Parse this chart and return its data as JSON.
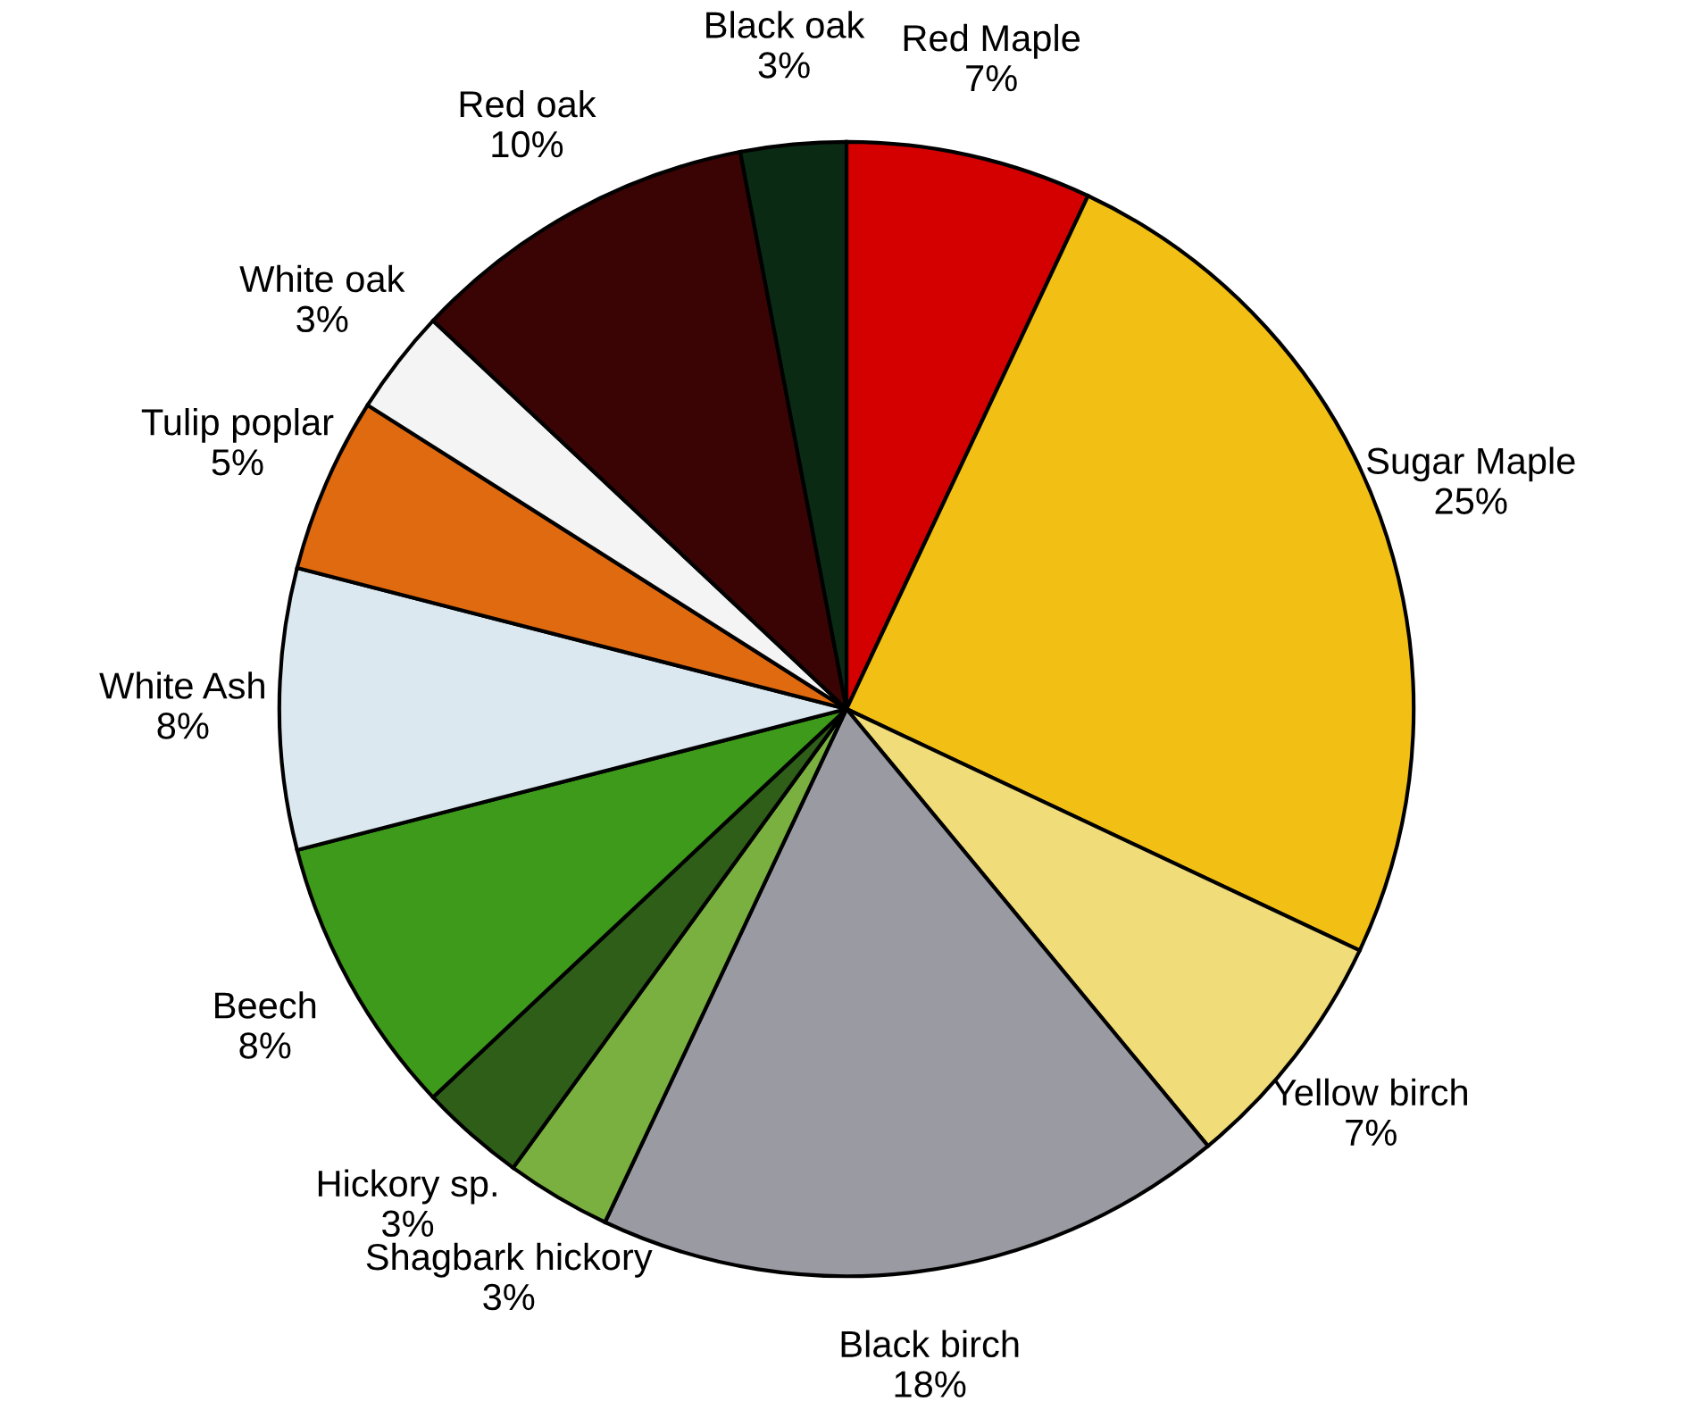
{
  "chart_data": {
    "type": "pie",
    "categories": [
      "Red Maple",
      "Sugar Maple",
      "Yellow birch",
      "Black birch",
      "Shagbark hickory",
      "Hickory sp.",
      "Beech",
      "White Ash",
      "Tulip poplar",
      "White oak",
      "Red oak",
      "Black oak"
    ],
    "values": [
      7,
      25,
      7,
      18,
      3,
      3,
      8,
      8,
      5,
      3,
      10,
      3
    ],
    "value_labels": [
      "7%",
      "25%",
      "7%",
      "18%",
      "3%",
      "3%",
      "8%",
      "8%",
      "5%",
      "3%",
      "10%",
      "3%"
    ],
    "colors": [
      "#d40000",
      "#f2c014",
      "#f0dc78",
      "#9a9aa2",
      "#7ab040",
      "#2e5e18",
      "#3e9a1a",
      "#dce8f0",
      "#e06a10",
      "#f4f4f4",
      "#3a0404",
      "#0a2a14"
    ]
  }
}
